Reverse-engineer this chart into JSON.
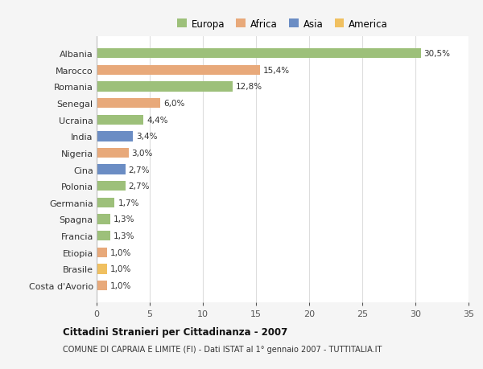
{
  "countries": [
    "Albania",
    "Marocco",
    "Romania",
    "Senegal",
    "Ucraina",
    "India",
    "Nigeria",
    "Cina",
    "Polonia",
    "Germania",
    "Spagna",
    "Francia",
    "Etiopia",
    "Brasile",
    "Costa d'Avorio"
  ],
  "values": [
    30.5,
    15.4,
    12.8,
    6.0,
    4.4,
    3.4,
    3.0,
    2.7,
    2.7,
    1.7,
    1.3,
    1.3,
    1.0,
    1.0,
    1.0
  ],
  "labels": [
    "30,5%",
    "15,4%",
    "12,8%",
    "6,0%",
    "4,4%",
    "3,4%",
    "3,0%",
    "2,7%",
    "2,7%",
    "1,7%",
    "1,3%",
    "1,3%",
    "1,0%",
    "1,0%",
    "1,0%"
  ],
  "continents": [
    "Europa",
    "Africa",
    "Europa",
    "Africa",
    "Europa",
    "Asia",
    "Africa",
    "Asia",
    "Europa",
    "Europa",
    "Europa",
    "Europa",
    "Africa",
    "America",
    "Africa"
  ],
  "colors": {
    "Europa": "#9dc07a",
    "Africa": "#e8a97a",
    "Asia": "#6b8dc4",
    "America": "#f0c060"
  },
  "legend_order": [
    "Europa",
    "Africa",
    "Asia",
    "America"
  ],
  "xlim": [
    0,
    35
  ],
  "xticks": [
    0,
    5,
    10,
    15,
    20,
    25,
    30,
    35
  ],
  "title": "Cittadini Stranieri per Cittadinanza - 2007",
  "subtitle": "COMUNE DI CAPRAIA E LIMITE (FI) - Dati ISTAT al 1° gennaio 2007 - TUTTITALIA.IT",
  "background_color": "#f5f5f5",
  "plot_bg_color": "#ffffff",
  "grid_color": "#dddddd",
  "bar_height": 0.6
}
